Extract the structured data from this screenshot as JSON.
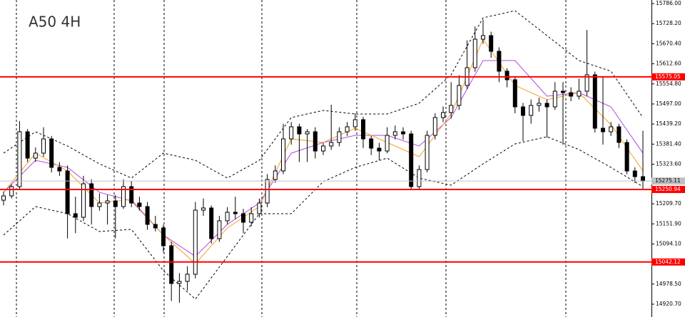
{
  "chart_data": {
    "type": "candlestick",
    "title": "A50 4H",
    "open": [
      15220,
      15232.4,
      15259.1,
      15417.0,
      15341.1,
      15355.5,
      15396.5,
      15314.5,
      15304.2,
      15181.2,
      15170.9,
      15267.3,
      15201.7,
      15211.9,
      15218.1,
      15201.7,
      15259.1,
      15211.9,
      15201.7,
      15150.4,
      15140.2,
      15088.9,
      14980.2,
      14986.4,
      15006.9,
      15191.4,
      15197.6,
      15109.4,
      15160.7,
      15185.3,
      15181.2,
      15156.6,
      15181.2,
      15211.9,
      15279.6,
      15304.2,
      15396.5,
      15431.3,
      15410.8,
      15417.0,
      15361.6,
      15376.0,
      15386.2,
      15417.0,
      15431.3,
      15451.8,
      15396.5,
      15369.8,
      15361.6,
      15406.7,
      15417.0,
      15410.8,
      15259.1,
      15308.3,
      15406.7,
      15458.0,
      15472.3,
      15492.8,
      15550.3,
      15601.5,
      15683.5,
      15693.8,
      15648.7,
      15591.3,
      15566.7,
      15488.7,
      15464.1,
      15492.8,
      15499.0,
      15488.7,
      15533.8,
      15529.7,
      15519.5,
      15533.8,
      15581.0,
      15427.2,
      15417.0,
      15431.3,
      15386.2,
      15304.2,
      15287.8
    ],
    "high": [
      15245,
      15265,
      15448,
      15425,
      15372,
      15430,
      15405,
      15330,
      15320,
      15230,
      15290,
      15280,
      15240,
      15235,
      15235,
      15280,
      15275,
      15230,
      15215,
      15175,
      15150,
      15100,
      15010,
      15030,
      15215,
      15225,
      15205,
      15175,
      15200,
      15230,
      15195,
      15200,
      15225,
      15295,
      15320,
      15440,
      15445,
      15440,
      15425,
      15430,
      15385,
      15495,
      15430,
      15445,
      15470,
      15460,
      15405,
      15385,
      15430,
      15435,
      15430,
      15420,
      15320,
      15420,
      15470,
      15490,
      15560,
      15580,
      15680,
      15720,
      15740,
      15705,
      15660,
      15600,
      15575,
      15500,
      15510,
      15515,
      15510,
      15560,
      15560,
      15545,
      15570,
      15710,
      15590,
      15575,
      15445,
      15440,
      15395,
      15315,
      15420
    ],
    "low": [
      15205,
      15225,
      15250,
      15330,
      15330,
      15345,
      15300,
      15290,
      15110,
      15125,
      15160,
      15150,
      15190,
      15150,
      15110,
      15195,
      15200,
      15190,
      15135,
      15130,
      15070,
      14930,
      14925,
      14960,
      14995,
      15175,
      15095,
      15100,
      15150,
      15165,
      15125,
      15145,
      15170,
      15200,
      15270,
      15295,
      15380,
      15330,
      15330,
      15340,
      15350,
      15365,
      15375,
      15405,
      15420,
      15370,
      15350,
      15335,
      15355,
      15395,
      15395,
      15250,
      15250,
      15300,
      15395,
      15445,
      15455,
      15480,
      15540,
      15590,
      15670,
      15630,
      15560,
      15545,
      15470,
      15390,
      15440,
      15475,
      15400,
      15480,
      15380,
      15505,
      15510,
      15520,
      15415,
      15380,
      15405,
      15370,
      15295,
      15270,
      15250
    ],
    "close": [
      15232.4,
      15259.1,
      15417.0,
      15341.1,
      15355.5,
      15396.5,
      15314.5,
      15304.2,
      15181.2,
      15170.9,
      15267.3,
      15201.7,
      15211.9,
      15218.1,
      15201.7,
      15259.1,
      15211.9,
      15201.7,
      15150.4,
      15140.2,
      15088.9,
      14980.2,
      14986.4,
      15006.9,
      15191.4,
      15197.6,
      15109.4,
      15160.7,
      15185.3,
      15181.2,
      15156.6,
      15181.2,
      15211.9,
      15279.6,
      15304.2,
      15396.5,
      15431.3,
      15410.8,
      15417.0,
      15361.6,
      15376.0,
      15386.2,
      15417.0,
      15431.3,
      15451.8,
      15396.5,
      15369.8,
      15361.6,
      15406.7,
      15417.0,
      15410.8,
      15259.1,
      15308.3,
      15406.7,
      15458.0,
      15472.3,
      15492.8,
      15550.3,
      15601.5,
      15683.5,
      15693.8,
      15648.7,
      15591.3,
      15566.7,
      15488.7,
      15464.1,
      15492.8,
      15499.0,
      15488.7,
      15533.8,
      15529.7,
      15519.5,
      15533.8,
      15581.0,
      15427.2,
      15417.0,
      15431.3,
      15386.2,
      15304.2,
      15287.8,
      15275.11
    ],
    "up_color": "#ffffff",
    "down_color": "#000000",
    "series": [
      {
        "color": "#000000",
        "style": "dashed",
        "values": [
          15355.5,
          15417.0,
          15376.0,
          15324.7,
          15283.7,
          15355.5,
          15334.9,
          15283.7,
          15334.9,
          15458.0,
          15478.5,
          15468.2,
          15468.2,
          15499.0,
          15581.0,
          15745.0,
          15765.5,
          15693.8,
          15622.0,
          15591.3,
          15458.0
        ]
      },
      {
        "color": "#000000",
        "style": "dashed",
        "values": [
          15119.7,
          15201.7,
          15181.2,
          15129.9,
          15136.1,
          15017.1,
          14935.1,
          15058.2,
          15181.2,
          15181.2,
          15273.5,
          15314.5,
          15341.1,
          15283.7,
          15263.2,
          15324.7,
          15382.1,
          15402.6,
          15365.7,
          15314.5,
          15259.1
        ]
      },
      {
        "color": "#b04ae0",
        "style": "solid",
        "values": [
          15242.7,
          15334.9,
          15314.5,
          15242.7,
          15218.1,
          15119.7,
          15058.2,
          15150.4,
          15211.9,
          15355.5,
          15386.2,
          15406.7,
          15406.7,
          15376.0,
          15458.0,
          15622.0,
          15622.0,
          15519.5,
          15529.7,
          15488.7,
          15355.5
        ]
      },
      {
        "color": "#f5a020",
        "style": "solid",
        "values": [
          15242.7,
          15355.5,
          15304.2,
          15211.9,
          15222.2,
          15119.7,
          15037.6,
          15140.2,
          15201.7,
          15396.5,
          15386.2,
          15427.2,
          15386.2,
          15345.2,
          15468.2,
          15683.5,
          15550.3,
          15509.2,
          15529.7,
          15437.5,
          15304.2
        ]
      }
    ],
    "levels": [
      {
        "value": 15575.05,
        "color": "#ff0000"
      },
      {
        "value": 15250.94,
        "color": "#ff0000"
      },
      {
        "value": 15042.12,
        "color": "#ff0000"
      }
    ],
    "last_price": 15275.11,
    "last_price_color": "#c0c0c0",
    "ylim": [
      14883.8,
      15796.3
    ],
    "yticks": [
      {
        "value": 15786,
        "label": "15786.00"
      },
      {
        "value": 15728.2,
        "label": "15728.20"
      },
      {
        "value": 15670.4,
        "label": "15670.40"
      },
      {
        "value": 15612.6,
        "label": "15612.60"
      },
      {
        "value": 15554.8,
        "label": "15554.80"
      },
      {
        "value": 15497,
        "label": "15497.00"
      },
      {
        "value": 15439.2,
        "label": "15439.20"
      },
      {
        "value": 15381.4,
        "label": "15381.40"
      },
      {
        "value": 15323.6,
        "label": "15323.60"
      },
      {
        "value": 15209.7,
        "label": "15209.70"
      },
      {
        "value": 15151.9,
        "label": "15151.90"
      },
      {
        "value": 15094.1,
        "label": "15094.10"
      },
      {
        "value": 14978.5,
        "label": "14978.50"
      },
      {
        "value": 14920.7,
        "label": "14920.70"
      }
    ]
  }
}
